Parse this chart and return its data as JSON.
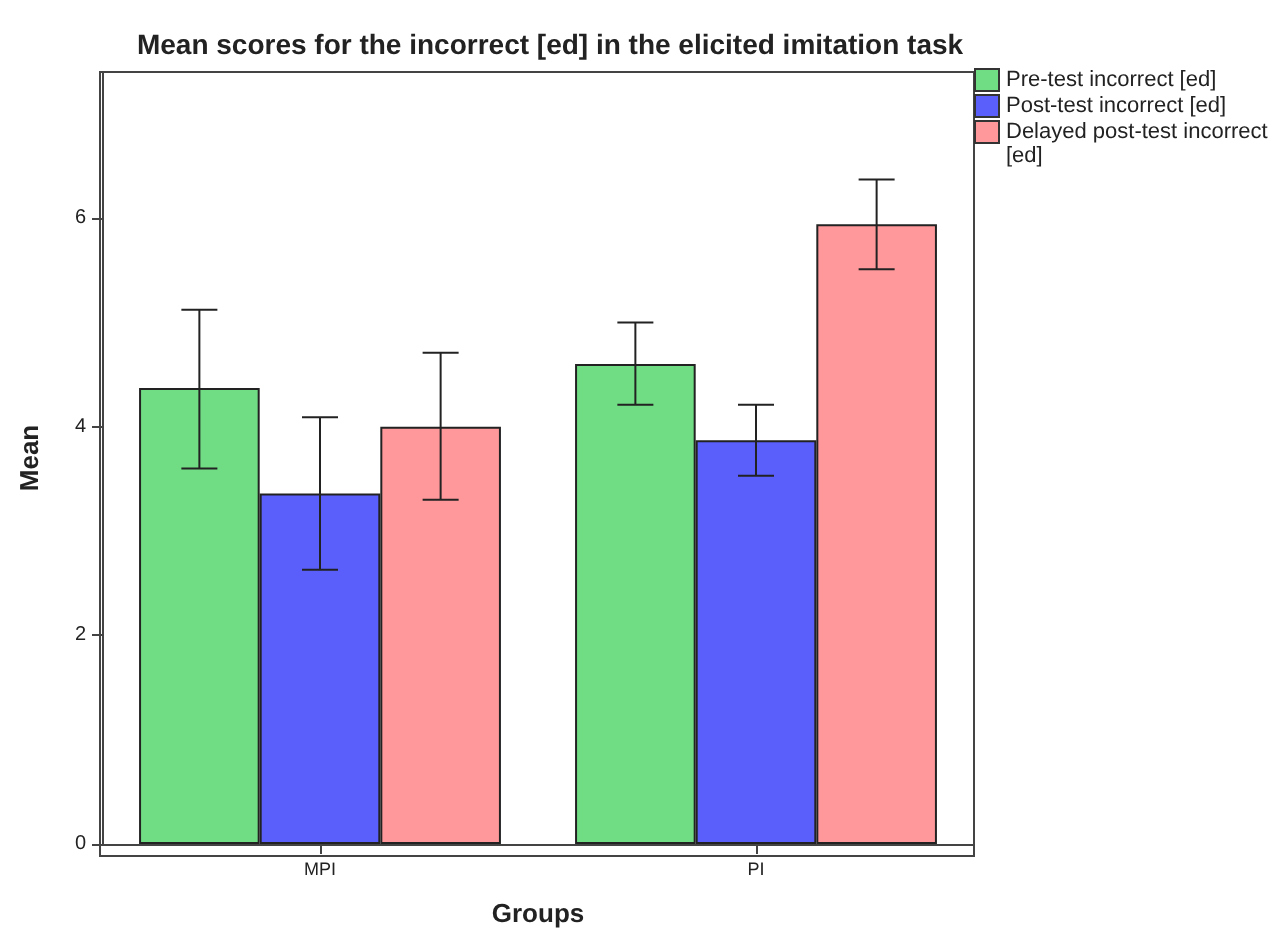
{
  "chart_data": {
    "type": "bar",
    "title": "Mean scores for the incorrect [ed] in the elicited imitation task",
    "xlabel": "Groups",
    "ylabel": "Mean",
    "categories": [
      "MPI",
      "PI"
    ],
    "series": [
      {
        "name": "Pre-test incorrect [ed]",
        "color": "#70dc84",
        "values": [
          4.37,
          4.6
        ],
        "errors": [
          [
            3.6,
            5.12
          ],
          [
            4.21,
            5.0
          ]
        ]
      },
      {
        "name": "Post-test incorrect [ed]",
        "color": "#5a5ffc",
        "values": [
          3.36,
          3.87
        ],
        "errors": [
          [
            2.63,
            4.09
          ],
          [
            3.53,
            4.21
          ]
        ]
      },
      {
        "name": "Delayed post-test incorrect [ed]",
        "color": "#fe989a",
        "values": [
          4.0,
          5.94
        ],
        "errors": [
          [
            3.3,
            4.71
          ],
          [
            5.51,
            6.37
          ]
        ]
      }
    ],
    "ylim": [
      0,
      7.4
    ],
    "yticks": [
      0,
      2,
      4,
      6
    ],
    "grid": false,
    "legend": "top right"
  }
}
